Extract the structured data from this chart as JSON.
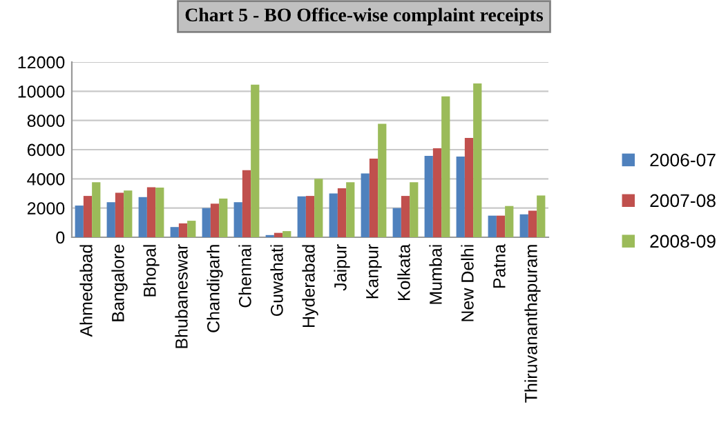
{
  "chart_data": {
    "type": "bar",
    "title": "Chart 5 - BO Office-wise complaint receipts",
    "categories": [
      "Ahmedabad",
      "Bangalore",
      "Bhopal",
      "Bhubaneswar",
      "Chandigarh",
      "Chennai",
      "Guwahati",
      "Hyderabad",
      "Jaipur",
      "Kanpur",
      "Kolkata",
      "Mumbai",
      "New Delhi",
      "Patna",
      "Thiruvananthapuram"
    ],
    "series": [
      {
        "name": "2006-07",
        "color": "#4f81bd",
        "values": [
          2170,
          2400,
          2750,
          700,
          2000,
          2400,
          150,
          2800,
          3000,
          4370,
          2000,
          5570,
          5530,
          1480,
          1570
        ]
      },
      {
        "name": "2007-08",
        "color": "#c0504d",
        "values": [
          2830,
          3050,
          3430,
          950,
          2300,
          4600,
          300,
          2830,
          3350,
          5380,
          2830,
          6100,
          6800,
          1480,
          1820
        ]
      },
      {
        "name": "2008-09",
        "color": "#9bbb59",
        "values": [
          3770,
          3200,
          3400,
          1130,
          2650,
          10450,
          420,
          4000,
          3770,
          7770,
          3770,
          9650,
          10530,
          2140,
          2860
        ]
      }
    ],
    "ylim": [
      0,
      12000
    ],
    "yticks": [
      0,
      2000,
      4000,
      6000,
      8000,
      10000,
      12000
    ],
    "grid": "y",
    "legend": "right"
  }
}
